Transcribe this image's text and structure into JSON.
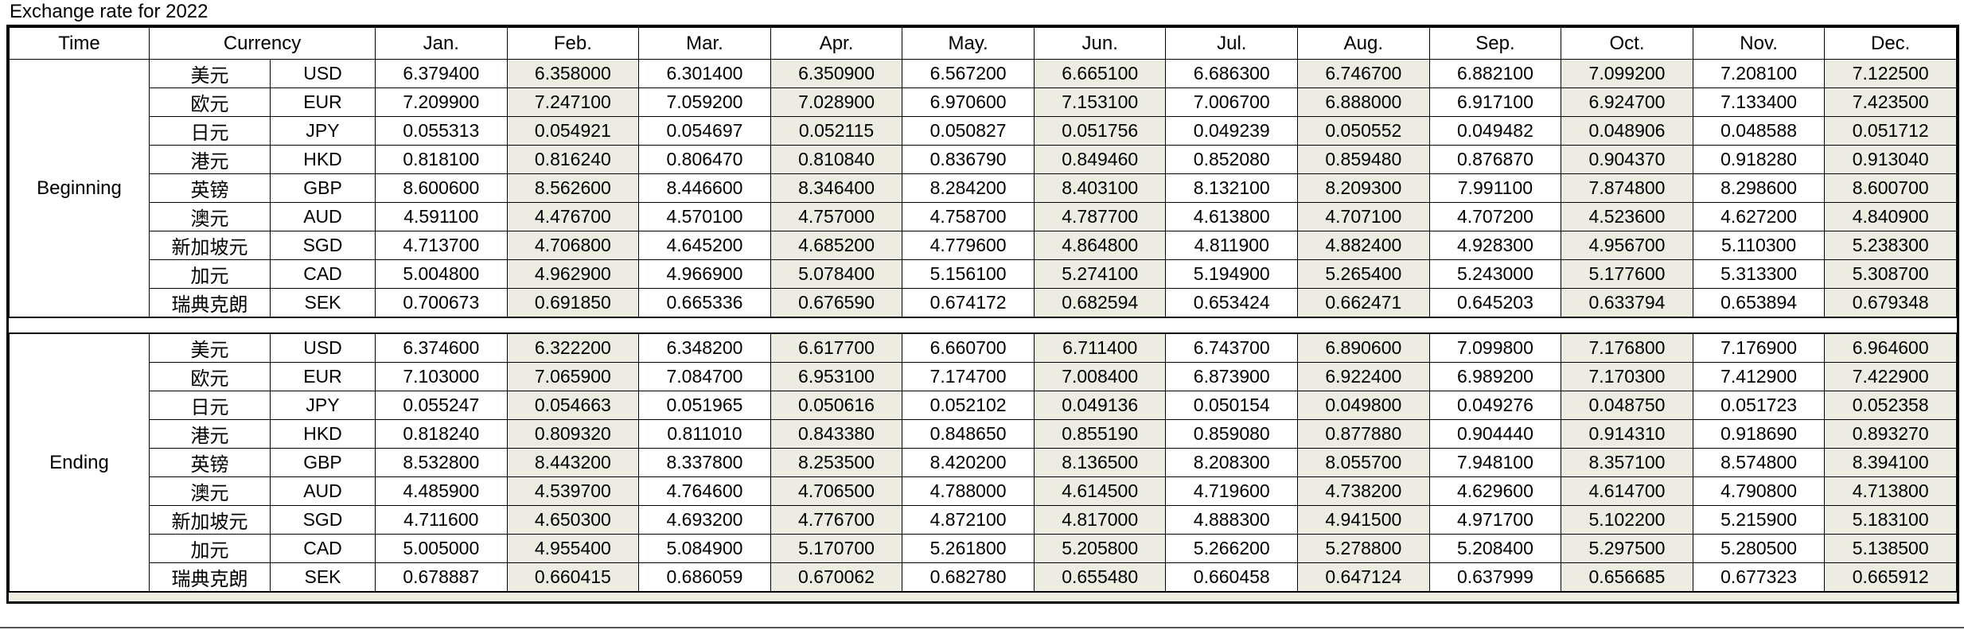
{
  "title": "Exchange rate for 2022",
  "colors": {
    "shaded_column_bg": "#ecece0",
    "grid_line": "#000000"
  },
  "table": {
    "time_header": "Time",
    "currency_header": "Currency",
    "months": [
      "Jan.",
      "Feb.",
      "Mar.",
      "Apr.",
      "May.",
      "Jun.",
      "Jul.",
      "Aug.",
      "Sep.",
      "Oct.",
      "Nov.",
      "Dec."
    ],
    "sections": [
      {
        "label": "Beginning",
        "rows": [
          {
            "name_zh": "美元",
            "code": "USD",
            "values": [
              "6.379400",
              "6.358000",
              "6.301400",
              "6.350900",
              "6.567200",
              "6.665100",
              "6.686300",
              "6.746700",
              "6.882100",
              "7.099200",
              "7.208100",
              "7.122500"
            ]
          },
          {
            "name_zh": "欧元",
            "code": "EUR",
            "values": [
              "7.209900",
              "7.247100",
              "7.059200",
              "7.028900",
              "6.970600",
              "7.153100",
              "7.006700",
              "6.888000",
              "6.917100",
              "6.924700",
              "7.133400",
              "7.423500"
            ]
          },
          {
            "name_zh": "日元",
            "code": "JPY",
            "values": [
              "0.055313",
              "0.054921",
              "0.054697",
              "0.052115",
              "0.050827",
              "0.051756",
              "0.049239",
              "0.050552",
              "0.049482",
              "0.048906",
              "0.048588",
              "0.051712"
            ]
          },
          {
            "name_zh": "港元",
            "code": "HKD",
            "values": [
              "0.818100",
              "0.816240",
              "0.806470",
              "0.810840",
              "0.836790",
              "0.849460",
              "0.852080",
              "0.859480",
              "0.876870",
              "0.904370",
              "0.918280",
              "0.913040"
            ]
          },
          {
            "name_zh": "英镑",
            "code": "GBP",
            "values": [
              "8.600600",
              "8.562600",
              "8.446600",
              "8.346400",
              "8.284200",
              "8.403100",
              "8.132100",
              "8.209300",
              "7.991100",
              "7.874800",
              "8.298600",
              "8.600700"
            ]
          },
          {
            "name_zh": "澳元",
            "code": "AUD",
            "values": [
              "4.591100",
              "4.476700",
              "4.570100",
              "4.757000",
              "4.758700",
              "4.787700",
              "4.613800",
              "4.707100",
              "4.707200",
              "4.523600",
              "4.627200",
              "4.840900"
            ]
          },
          {
            "name_zh": "新加坡元",
            "code": "SGD",
            "values": [
              "4.713700",
              "4.706800",
              "4.645200",
              "4.685200",
              "4.779600",
              "4.864800",
              "4.811900",
              "4.882400",
              "4.928300",
              "4.956700",
              "5.110300",
              "5.238300"
            ]
          },
          {
            "name_zh": "加元",
            "code": "CAD",
            "values": [
              "5.004800",
              "4.962900",
              "4.966900",
              "5.078400",
              "5.156100",
              "5.274100",
              "5.194900",
              "5.265400",
              "5.243000",
              "5.177600",
              "5.313300",
              "5.308700"
            ]
          },
          {
            "name_zh": "瑞典克朗",
            "code": "SEK",
            "values": [
              "0.700673",
              "0.691850",
              "0.665336",
              "0.676590",
              "0.674172",
              "0.682594",
              "0.653424",
              "0.662471",
              "0.645203",
              "0.633794",
              "0.653894",
              "0.679348"
            ]
          }
        ]
      },
      {
        "label": "Ending",
        "rows": [
          {
            "name_zh": "美元",
            "code": "USD",
            "values": [
              "6.374600",
              "6.322200",
              "6.348200",
              "6.617700",
              "6.660700",
              "6.711400",
              "6.743700",
              "6.890600",
              "7.099800",
              "7.176800",
              "7.176900",
              "6.964600"
            ]
          },
          {
            "name_zh": "欧元",
            "code": "EUR",
            "values": [
              "7.103000",
              "7.065900",
              "7.084700",
              "6.953100",
              "7.174700",
              "7.008400",
              "6.873900",
              "6.922400",
              "6.989200",
              "7.170300",
              "7.412900",
              "7.422900"
            ]
          },
          {
            "name_zh": "日元",
            "code": "JPY",
            "values": [
              "0.055247",
              "0.054663",
              "0.051965",
              "0.050616",
              "0.052102",
              "0.049136",
              "0.050154",
              "0.049800",
              "0.049276",
              "0.048750",
              "0.051723",
              "0.052358"
            ]
          },
          {
            "name_zh": "港元",
            "code": "HKD",
            "values": [
              "0.818240",
              "0.809320",
              "0.811010",
              "0.843380",
              "0.848650",
              "0.855190",
              "0.859080",
              "0.877880",
              "0.904440",
              "0.914310",
              "0.918690",
              "0.893270"
            ]
          },
          {
            "name_zh": "英镑",
            "code": "GBP",
            "values": [
              "8.532800",
              "8.443200",
              "8.337800",
              "8.253500",
              "8.420200",
              "8.136500",
              "8.208300",
              "8.055700",
              "7.948100",
              "8.357100",
              "8.574800",
              "8.394100"
            ]
          },
          {
            "name_zh": "澳元",
            "code": "AUD",
            "values": [
              "4.485900",
              "4.539700",
              "4.764600",
              "4.706500",
              "4.788000",
              "4.614500",
              "4.719600",
              "4.738200",
              "4.629600",
              "4.614700",
              "4.790800",
              "4.713800"
            ]
          },
          {
            "name_zh": "新加坡元",
            "code": "SGD",
            "values": [
              "4.711600",
              "4.650300",
              "4.693200",
              "4.776700",
              "4.872100",
              "4.817000",
              "4.888300",
              "4.941500",
              "4.971700",
              "5.102200",
              "5.215900",
              "5.183100"
            ]
          },
          {
            "name_zh": "加元",
            "code": "CAD",
            "values": [
              "5.005000",
              "4.955400",
              "5.084900",
              "5.170700",
              "5.261800",
              "5.205800",
              "5.266200",
              "5.278800",
              "5.208400",
              "5.297500",
              "5.280500",
              "5.138500"
            ]
          },
          {
            "name_zh": "瑞典克朗",
            "code": "SEK",
            "values": [
              "0.678887",
              "0.660415",
              "0.686059",
              "0.670062",
              "0.682780",
              "0.655480",
              "0.660458",
              "0.647124",
              "0.637999",
              "0.656685",
              "0.677323",
              "0.665912"
            ]
          }
        ]
      }
    ]
  }
}
